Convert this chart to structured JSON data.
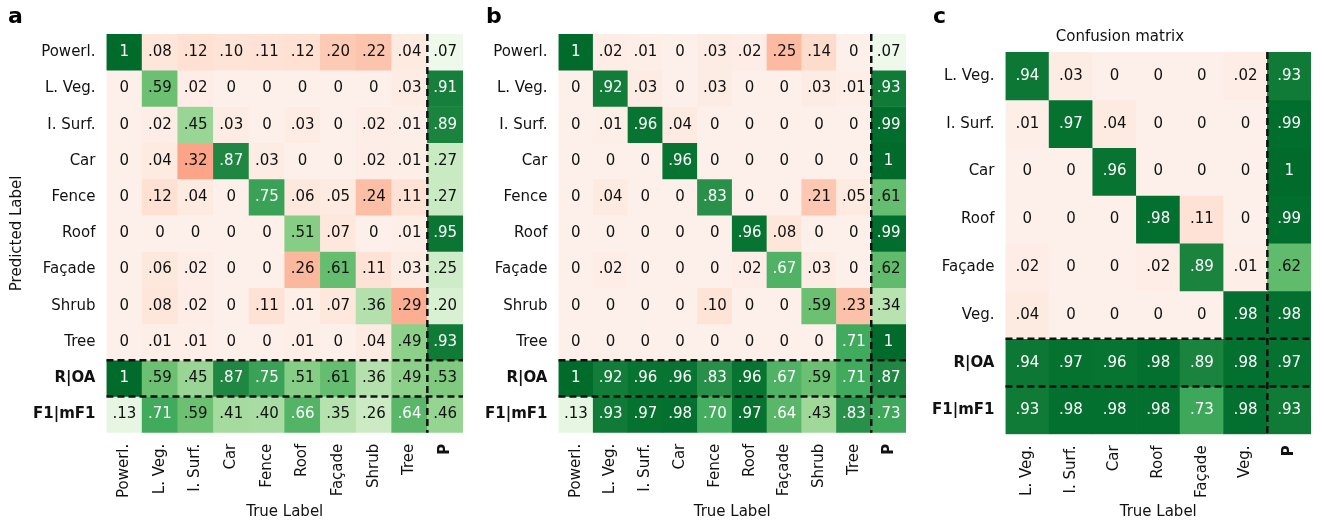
{
  "chart_data": [
    {
      "type": "heatmap",
      "title": "a",
      "xlabel": "True Label",
      "ylabel": "Predicted Label",
      "categories": [
        "Powerl.",
        "L. Veg.",
        "I. Surf.",
        "Car",
        "Fence",
        "Roof",
        "Façade",
        "Shrub",
        "Tree",
        "P"
      ],
      "y_categories": [
        "Powerl.",
        "L. Veg.",
        "I. Surf.",
        "Car",
        "Fence",
        "Roof",
        "Façade",
        "Shrub",
        "Tree",
        "R|OA",
        "F1|mF1"
      ],
      "cells": [
        [
          1,
          0.08,
          0.12,
          0.1,
          0.11,
          0.12,
          0.2,
          0.22,
          0.04,
          0.07
        ],
        [
          0,
          0.59,
          0.02,
          0,
          0,
          0,
          0,
          0,
          0.03,
          0.91
        ],
        [
          0,
          0.02,
          0.45,
          0.03,
          0,
          0.03,
          0,
          0.02,
          0.01,
          0.89
        ],
        [
          0,
          0.04,
          0.32,
          0.87,
          0.03,
          0,
          0,
          0.02,
          0.01,
          0.27
        ],
        [
          0,
          0.12,
          0.04,
          0,
          0.75,
          0.06,
          0.05,
          0.24,
          0.11,
          0.27
        ],
        [
          0,
          0,
          0,
          0,
          0,
          0.51,
          0.07,
          0,
          0.01,
          0.95
        ],
        [
          0,
          0.06,
          0.02,
          0,
          0,
          0.26,
          0.61,
          0.11,
          0.03,
          0.25
        ],
        [
          0,
          0.08,
          0.02,
          0,
          0.11,
          0.01,
          0.07,
          0.36,
          0.29,
          0.2
        ],
        [
          0,
          0.01,
          0.01,
          0,
          0,
          0.01,
          0,
          0.04,
          0.49,
          0.93
        ],
        [
          1,
          0.59,
          0.45,
          0.87,
          0.75,
          0.51,
          0.61,
          0.36,
          0.49,
          0.53
        ],
        [
          0.13,
          0.71,
          0.59,
          0.41,
          0.4,
          0.66,
          0.35,
          0.26,
          0.64,
          0.46
        ]
      ],
      "cell_labels": [
        [
          "1",
          ".08",
          ".12",
          ".10",
          ".11",
          ".12",
          ".20",
          ".22",
          ".04",
          ".07"
        ],
        [
          "0",
          ".59",
          ".02",
          "0",
          "0",
          "0",
          "0",
          "0",
          ".03",
          ".91"
        ],
        [
          "0",
          ".02",
          ".45",
          ".03",
          "0",
          ".03",
          "0",
          ".02",
          ".01",
          ".89"
        ],
        [
          "0",
          ".04",
          ".32",
          ".87",
          ".03",
          "0",
          "0",
          ".02",
          ".01",
          ".27"
        ],
        [
          "0",
          ".12",
          ".04",
          "0",
          ".75",
          ".06",
          ".05",
          ".24",
          ".11",
          ".27"
        ],
        [
          "0",
          "0",
          "0",
          "0",
          "0",
          ".51",
          ".07",
          "0",
          ".01",
          ".95"
        ],
        [
          "0",
          ".06",
          ".02",
          "0",
          "0",
          ".26",
          ".61",
          ".11",
          ".03",
          ".25"
        ],
        [
          "0",
          ".08",
          ".02",
          "0",
          ".11",
          ".01",
          ".07",
          ".36",
          ".29",
          ".20"
        ],
        [
          "0",
          ".01",
          ".01",
          "0",
          "0",
          ".01",
          "0",
          ".04",
          ".49",
          ".93"
        ],
        [
          "1",
          ".59",
          ".45",
          ".87",
          ".75",
          ".51",
          ".61",
          ".36",
          ".49",
          ".53"
        ],
        [
          ".13",
          ".71",
          ".59",
          ".41",
          ".40",
          ".66",
          ".35",
          ".26",
          ".64",
          ".46"
        ]
      ]
    },
    {
      "type": "heatmap",
      "title": "b",
      "xlabel": "True Label",
      "categories": [
        "Powerl.",
        "L. Veg.",
        "I. Surf.",
        "Car",
        "Fence",
        "Roof",
        "Façade",
        "Shrub",
        "Tree",
        "P"
      ],
      "y_categories": [
        "Powerl.",
        "L. Veg.",
        "I. Surf.",
        "Car",
        "Fence",
        "Roof",
        "Façade",
        "Shrub",
        "Tree",
        "R|OA",
        "F1|mF1"
      ],
      "cells": [
        [
          1,
          0.02,
          0.01,
          0,
          0.03,
          0.02,
          0.25,
          0.14,
          0,
          0.07
        ],
        [
          0,
          0.92,
          0.03,
          0,
          0.03,
          0,
          0,
          0.03,
          0.01,
          0.93
        ],
        [
          0,
          0.01,
          0.96,
          0.04,
          0,
          0,
          0,
          0,
          0,
          0.99
        ],
        [
          0,
          0,
          0,
          0.96,
          0,
          0,
          0,
          0,
          0,
          1
        ],
        [
          0,
          0.04,
          0,
          0,
          0.83,
          0,
          0,
          0.21,
          0.05,
          0.61
        ],
        [
          0,
          0,
          0,
          0,
          0,
          0.96,
          0.08,
          0,
          0,
          0.99
        ],
        [
          0,
          0.02,
          0,
          0,
          0,
          0.02,
          0.67,
          0.03,
          0,
          0.62
        ],
        [
          0,
          0,
          0,
          0,
          0.1,
          0,
          0,
          0.59,
          0.23,
          0.34
        ],
        [
          0,
          0,
          0,
          0,
          0,
          0,
          0,
          0,
          0.71,
          1
        ],
        [
          1,
          0.92,
          0.96,
          0.96,
          0.83,
          0.96,
          0.67,
          0.59,
          0.71,
          0.87
        ],
        [
          0.13,
          0.93,
          0.97,
          0.98,
          0.7,
          0.97,
          0.64,
          0.43,
          0.83,
          0.73
        ]
      ],
      "cell_labels": [
        [
          "1",
          ".02",
          ".01",
          "0",
          ".03",
          ".02",
          ".25",
          ".14",
          "0",
          ".07"
        ],
        [
          "0",
          ".92",
          ".03",
          "0",
          ".03",
          "0",
          "0",
          ".03",
          ".01",
          ".93"
        ],
        [
          "0",
          ".01",
          ".96",
          ".04",
          "0",
          "0",
          "0",
          "0",
          "0",
          ".99"
        ],
        [
          "0",
          "0",
          "0",
          ".96",
          "0",
          "0",
          "0",
          "0",
          "0",
          "1"
        ],
        [
          "0",
          ".04",
          "0",
          "0",
          ".83",
          "0",
          "0",
          ".21",
          ".05",
          ".61"
        ],
        [
          "0",
          "0",
          "0",
          "0",
          "0",
          ".96",
          ".08",
          "0",
          "0",
          ".99"
        ],
        [
          "0",
          ".02",
          "0",
          "0",
          "0",
          ".02",
          ".67",
          ".03",
          "0",
          ".62"
        ],
        [
          "0",
          "0",
          "0",
          "0",
          ".10",
          "0",
          "0",
          ".59",
          ".23",
          ".34"
        ],
        [
          "0",
          "0",
          "0",
          "0",
          "0",
          "0",
          "0",
          "0",
          ".71",
          "1"
        ],
        [
          "1",
          ".92",
          ".96",
          ".96",
          ".83",
          ".96",
          ".67",
          ".59",
          ".71",
          ".87"
        ],
        [
          ".13",
          ".93",
          ".97",
          ".98",
          ".70",
          ".97",
          ".64",
          ".43",
          ".83",
          ".73"
        ]
      ]
    },
    {
      "type": "heatmap",
      "title": "c",
      "subtitle": "Confusion matrix",
      "xlabel": "True Label",
      "categories": [
        "L. Veg.",
        "I. Surf.",
        "Car",
        "Roof",
        "Façade",
        "Veg.",
        "P"
      ],
      "y_categories": [
        "L. Veg.",
        "I. Surf.",
        "Car",
        "Roof",
        "Façade",
        "Veg.",
        "R|OA",
        "F1|mF1"
      ],
      "cells": [
        [
          0.94,
          0.03,
          0,
          0,
          0,
          0.02,
          0.93
        ],
        [
          0.01,
          0.97,
          0.04,
          0,
          0,
          0,
          0.99
        ],
        [
          0,
          0,
          0.96,
          0,
          0,
          0,
          1
        ],
        [
          0,
          0,
          0,
          0.98,
          0.11,
          0,
          0.99
        ],
        [
          0.02,
          0,
          0,
          0.02,
          0.89,
          0.01,
          0.62
        ],
        [
          0.04,
          0,
          0,
          0,
          0,
          0.98,
          0.98
        ],
        [
          0.94,
          0.97,
          0.96,
          0.98,
          0.89,
          0.98,
          0.97
        ],
        [
          0.93,
          0.98,
          0.98,
          0.98,
          0.73,
          0.98,
          0.93
        ]
      ],
      "cell_labels": [
        [
          ".94",
          ".03",
          "0",
          "0",
          "0",
          ".02",
          ".93"
        ],
        [
          ".01",
          ".97",
          ".04",
          "0",
          "0",
          "0",
          ".99"
        ],
        [
          "0",
          "0",
          ".96",
          "0",
          "0",
          "0",
          "1"
        ],
        [
          "0",
          "0",
          "0",
          ".98",
          ".11",
          "0",
          ".99"
        ],
        [
          ".02",
          "0",
          "0",
          ".02",
          ".89",
          ".01",
          ".62"
        ],
        [
          ".04",
          "0",
          "0",
          "0",
          "0",
          ".98",
          ".98"
        ],
        [
          ".94",
          ".97",
          ".96",
          ".98",
          ".89",
          ".98",
          ".97"
        ],
        [
          ".93",
          ".98",
          ".98",
          ".98",
          ".73",
          ".98",
          ".93"
        ]
      ]
    }
  ]
}
